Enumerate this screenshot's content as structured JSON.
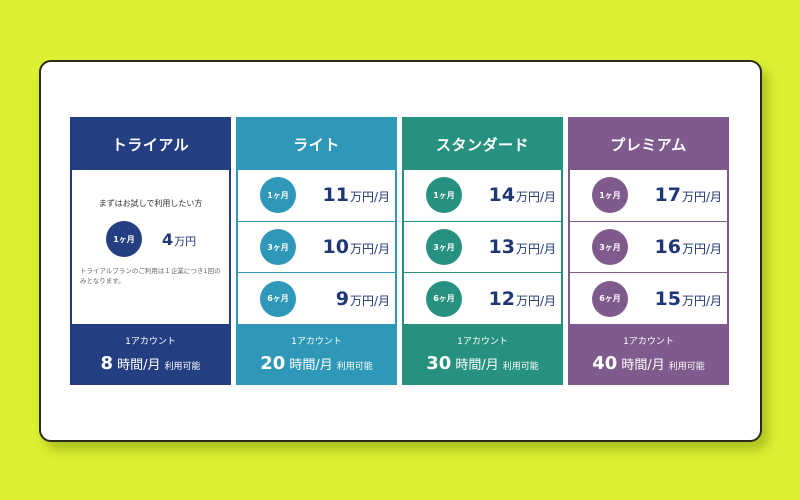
{
  "colors": {
    "background": "#dcef30",
    "trial": "#233f82",
    "lite": "#2f98b8",
    "standard": "#27917f",
    "premium": "#7f5a8c",
    "price_text": "#1f3775"
  },
  "trial": {
    "title": "トライアル",
    "lead": "まずはお試しで利用したい方",
    "badge": "1ヶ月",
    "price_num": "4",
    "price_unit": "万円",
    "note": "トライアルプランのご利用は１企業につき1回のみとなります。",
    "account": "1アカウント",
    "hours_num": "8",
    "hours_unit": "時間/月",
    "hours_avail": "利用可能"
  },
  "plans": [
    {
      "title": "ライト",
      "rows": [
        {
          "badge": "1ヶ月",
          "price_num": "11",
          "price_unit": "万円/月"
        },
        {
          "badge": "3ヶ月",
          "price_num": "10",
          "price_unit": "万円/月"
        },
        {
          "badge": "6ヶ月",
          "price_num": "9",
          "price_unit": "万円/月"
        }
      ],
      "account": "1アカウント",
      "hours_num": "20",
      "hours_unit": "時間/月",
      "hours_avail": "利用可能"
    },
    {
      "title": "スタンダード",
      "rows": [
        {
          "badge": "1ヶ月",
          "price_num": "14",
          "price_unit": "万円/月"
        },
        {
          "badge": "3ヶ月",
          "price_num": "13",
          "price_unit": "万円/月"
        },
        {
          "badge": "6ヶ月",
          "price_num": "12",
          "price_unit": "万円/月"
        }
      ],
      "account": "1アカウント",
      "hours_num": "30",
      "hours_unit": "時間/月",
      "hours_avail": "利用可能"
    },
    {
      "title": "プレミアム",
      "rows": [
        {
          "badge": "1ヶ月",
          "price_num": "17",
          "price_unit": "万円/月"
        },
        {
          "badge": "3ヶ月",
          "price_num": "16",
          "price_unit": "万円/月"
        },
        {
          "badge": "6ヶ月",
          "price_num": "15",
          "price_unit": "万円/月"
        }
      ],
      "account": "1アカウント",
      "hours_num": "40",
      "hours_unit": "時間/月",
      "hours_avail": "利用可能"
    }
  ]
}
